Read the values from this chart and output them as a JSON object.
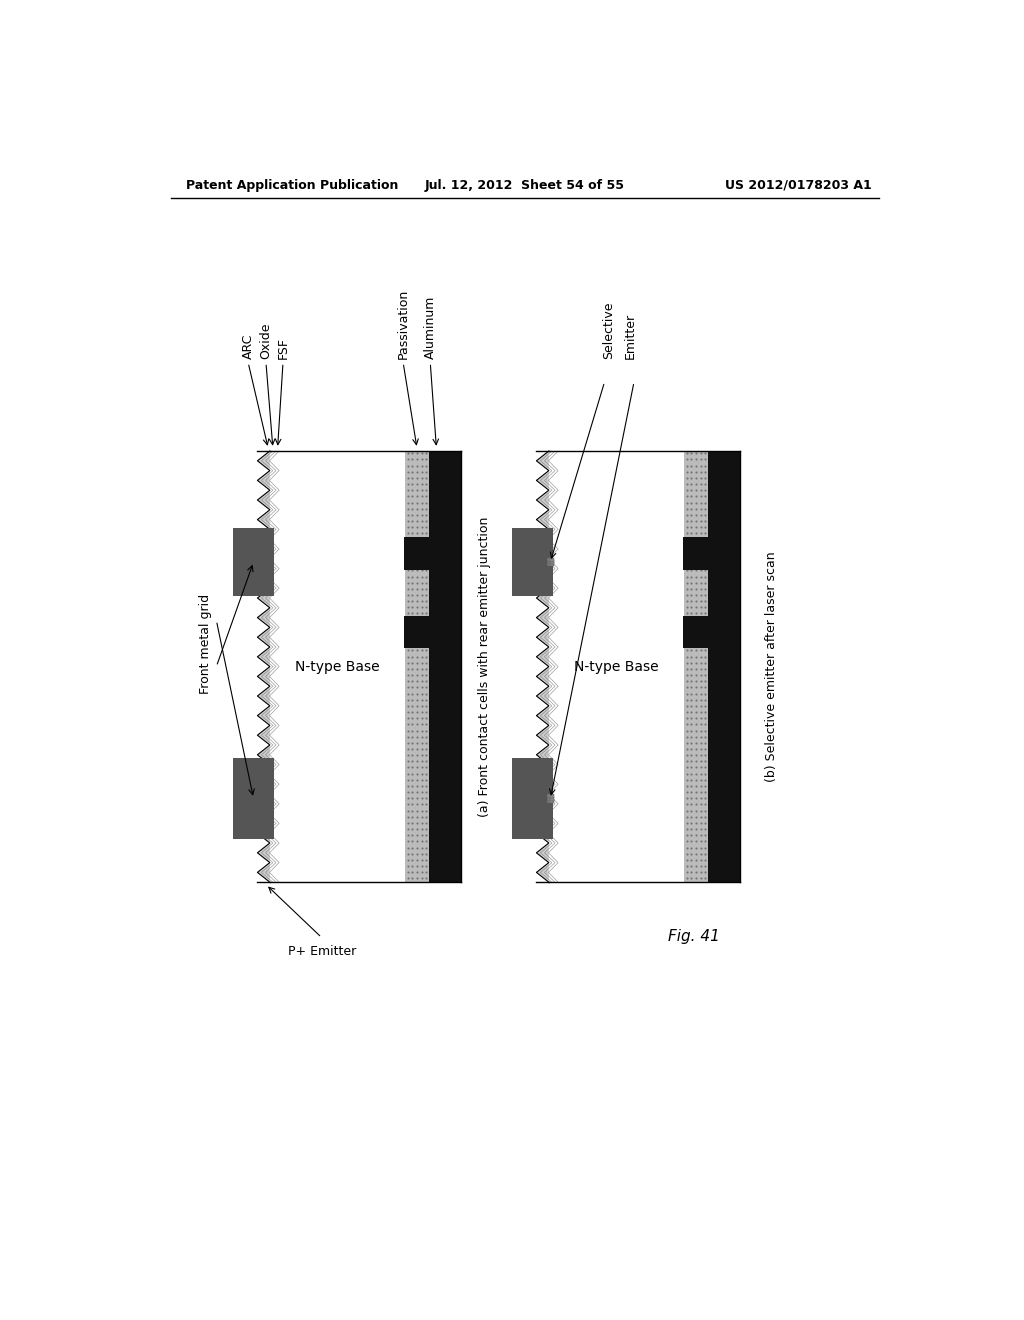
{
  "bg_color": "#ffffff",
  "header_left": "Patent Application Publication",
  "header_mid": "Jul. 12, 2012  Sheet 54 of 55",
  "header_right": "US 2012/0178203 A1",
  "fig_label": "Fig. 41",
  "caption_a": "(a) Front contact cells with rear emitter junction",
  "caption_b": "(b) Selective emitter after laser scan",
  "label_arc": "ARC",
  "label_oxide": "Oxide",
  "label_fsf": "FSF",
  "label_passivation": "Passivation",
  "label_aluminum": "Aluminum",
  "label_selective_emitter": "Selective\nEmitter",
  "label_front_metal_grid": "Front metal grid",
  "label_n_type_base_a": "N-type Base",
  "label_n_type_base_b": "N-type Base",
  "label_p_emitter": "P+ Emitter",
  "color_black": "#111111",
  "color_darkgray": "#555555",
  "color_gray": "#888888",
  "color_lightgray": "#bbbbbb",
  "color_verylightgray": "#e0e0e0",
  "color_white": "#ffffff",
  "color_zigzag_fill": "#cccccc",
  "color_passivation": "#bbbbbb",
  "color_passivation_dark": "#999999"
}
